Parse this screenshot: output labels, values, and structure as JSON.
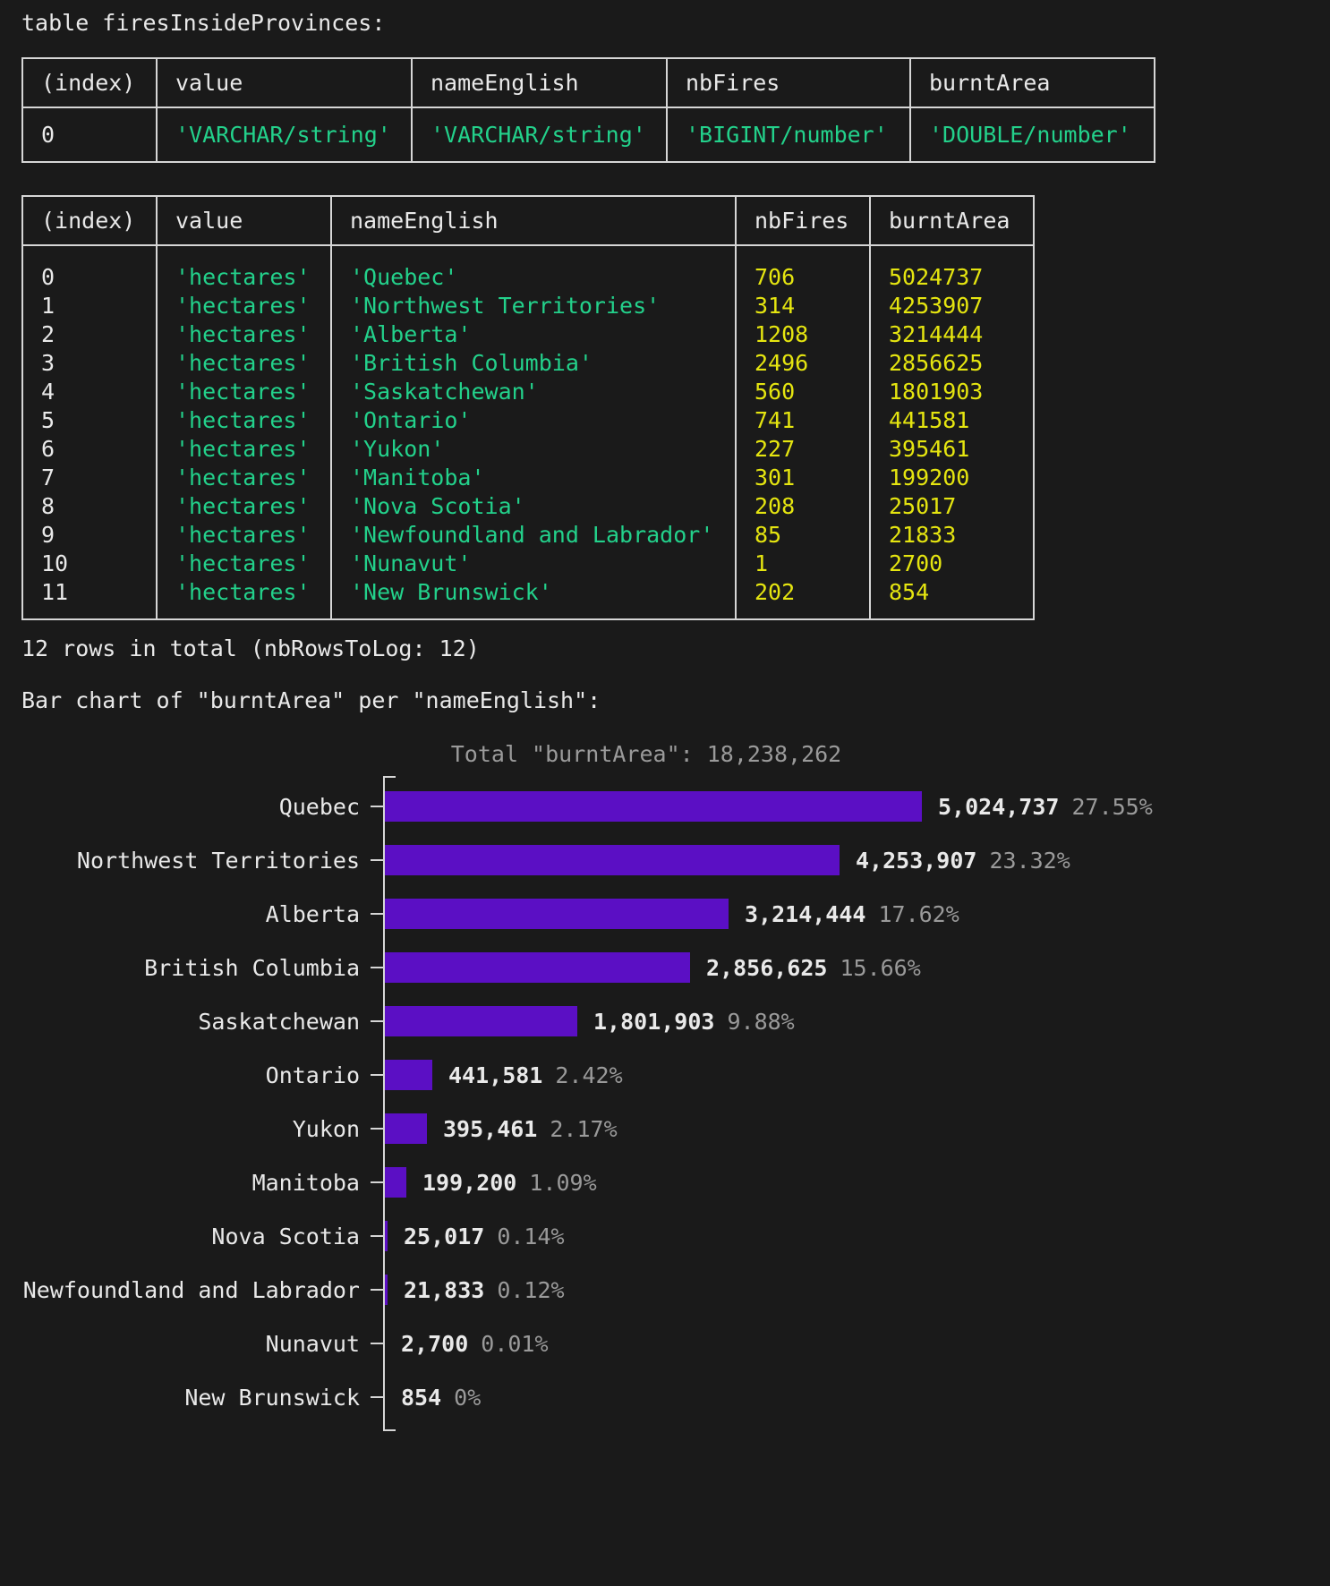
{
  "title": "table firesInsideProvinces:",
  "schema_table": {
    "columns": [
      "(index)",
      "value",
      "nameEnglish",
      "nbFires",
      "burntArea"
    ],
    "rows": [
      [
        "0",
        "'VARCHAR/string'",
        "'VARCHAR/string'",
        "'BIGINT/number'",
        "'DOUBLE/number'"
      ]
    ]
  },
  "data_table": {
    "columns": [
      "(index)",
      "value",
      "nameEnglish",
      "nbFires",
      "burntArea"
    ],
    "rows": [
      [
        "0",
        "'hectares'",
        "'Quebec'",
        "706",
        "5024737"
      ],
      [
        "1",
        "'hectares'",
        "'Northwest Territories'",
        "314",
        "4253907"
      ],
      [
        "2",
        "'hectares'",
        "'Alberta'",
        "1208",
        "3214444"
      ],
      [
        "3",
        "'hectares'",
        "'British Columbia'",
        "2496",
        "2856625"
      ],
      [
        "4",
        "'hectares'",
        "'Saskatchewan'",
        "560",
        "1801903"
      ],
      [
        "5",
        "'hectares'",
        "'Ontario'",
        "741",
        "441581"
      ],
      [
        "6",
        "'hectares'",
        "'Yukon'",
        "227",
        "395461"
      ],
      [
        "7",
        "'hectares'",
        "'Manitoba'",
        "301",
        "199200"
      ],
      [
        "8",
        "'hectares'",
        "'Nova Scotia'",
        "208",
        "25017"
      ],
      [
        "9",
        "'hectares'",
        "'Newfoundland and Labrador'",
        "85",
        "21833"
      ],
      [
        "10",
        "'hectares'",
        "'Nunavut'",
        "1",
        "2700"
      ],
      [
        "11",
        "'hectares'",
        "'New Brunswick'",
        "202",
        "854"
      ]
    ]
  },
  "summary": "12 rows in total (nbRowsToLog: 12)",
  "chart_heading": "Bar chart of \"burntArea\" per \"nameEnglish\":",
  "chart_data": {
    "type": "bar",
    "orientation": "horizontal",
    "title": "Total \"burntArea\": 18,238,262",
    "total": 18238262,
    "categories": [
      "Quebec",
      "Northwest Territories",
      "Alberta",
      "British Columbia",
      "Saskatchewan",
      "Ontario",
      "Yukon",
      "Manitoba",
      "Nova Scotia",
      "Newfoundland and Labrador",
      "Nunavut",
      "New Brunswick"
    ],
    "values": [
      5024737,
      4253907,
      3214444,
      2856625,
      1801903,
      441581,
      395461,
      199200,
      25017,
      21833,
      2700,
      854
    ],
    "value_labels": [
      "5,024,737",
      "4,253,907",
      "3,214,444",
      "2,856,625",
      "1,801,903",
      "441,581",
      "395,461",
      "199,200",
      "25,017",
      "21,833",
      "2,700",
      "854"
    ],
    "pct_labels": [
      "27.55%",
      "23.32%",
      "17.62%",
      "15.66%",
      "9.88%",
      "2.42%",
      "2.17%",
      "1.09%",
      "0.14%",
      "0.12%",
      "0.01%",
      "0%"
    ],
    "xlim": [
      0,
      5024737
    ],
    "grid": false,
    "legend": false
  },
  "colors": {
    "background": "#1a1a1a",
    "text": "#e9e9e9",
    "string": "#23d18b",
    "number": "#e5e510",
    "muted": "#9a9a9a",
    "border": "#d6d6d6",
    "bar": "#5b0fc4"
  }
}
